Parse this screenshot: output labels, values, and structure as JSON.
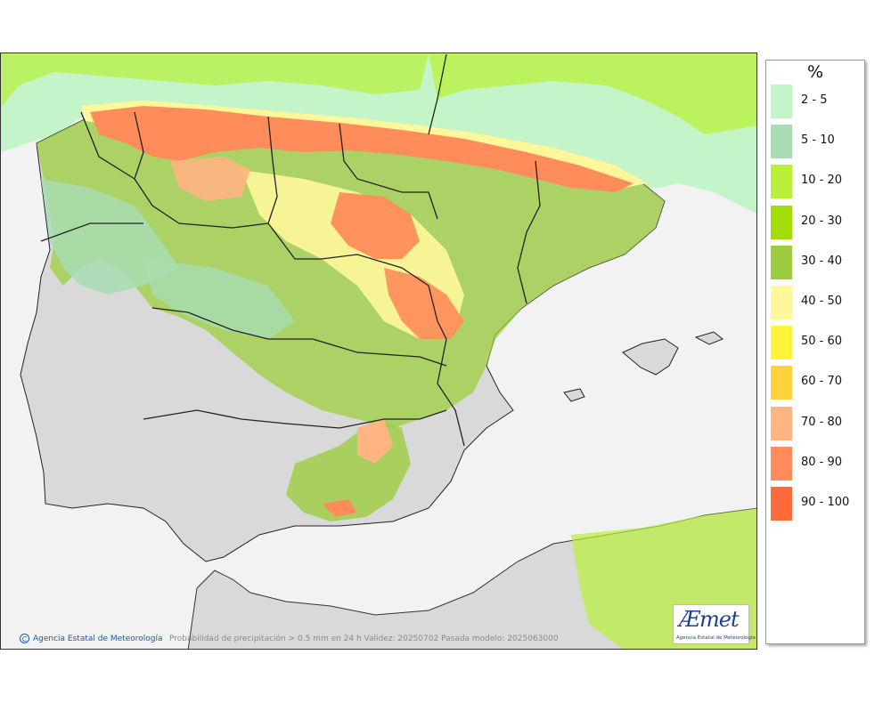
{
  "map": {
    "caption": "Probabilidad de precipitación > 0.5 mm en 24 h Validez: 20250702 Pasada modelo: 2025063000",
    "credit": "Agencia Estatal de Meteorología",
    "logo_text_a": "Æ",
    "logo_text_b": "met",
    "logo_subtitle": "Agencia Estatal de Meteorología",
    "land_color": "#d9d9d9",
    "sea_color": "#f2f2f2"
  },
  "legend": {
    "unit": "%",
    "items": [
      {
        "label": "2 - 5",
        "color": "#c4f5c9"
      },
      {
        "label": "5 - 10",
        "color": "#a8ddb3"
      },
      {
        "label": "10 - 20",
        "color": "#b8f03a"
      },
      {
        "label": "20 - 30",
        "color": "#a4dc0a"
      },
      {
        "label": "30 - 40",
        "color": "#9ccd3e"
      },
      {
        "label": "40 - 50",
        "color": "#fff79a"
      },
      {
        "label": "50 - 60",
        "color": "#fff43a"
      },
      {
        "label": "60 - 70",
        "color": "#ffd23a"
      },
      {
        "label": "70 - 80",
        "color": "#ffb482"
      },
      {
        "label": "80 - 90",
        "color": "#ff8c5a"
      },
      {
        "label": "90 - 100",
        "color": "#ff6a3a"
      }
    ]
  }
}
